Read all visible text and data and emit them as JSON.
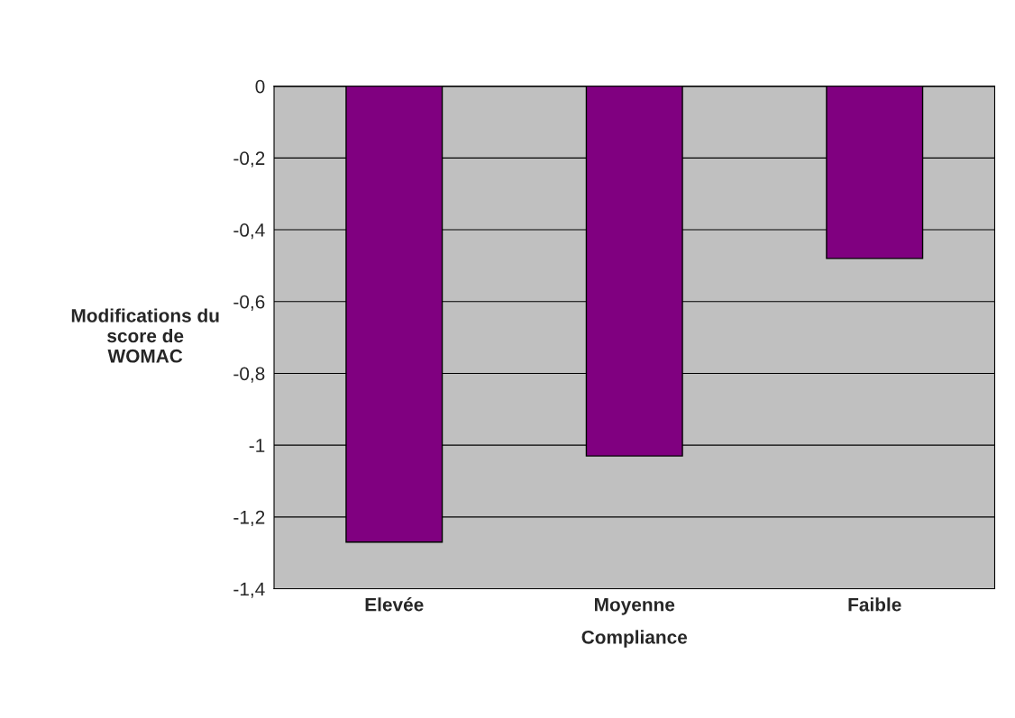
{
  "chart_data": {
    "type": "bar",
    "xlabel": "Compliance",
    "ylabel": "Modifications du\nscore de\nWOMAC",
    "categories": [
      "Elevée",
      "Moyenne",
      "Faible"
    ],
    "values": [
      -1.27,
      -1.03,
      -0.48
    ],
    "color": "#800080",
    "ylim": [
      -1.4,
      0
    ],
    "yticks": [
      {
        "value": 0,
        "label": "0"
      },
      {
        "value": -0.2,
        "label": "-0,2"
      },
      {
        "value": -0.4,
        "label": "-0,4"
      },
      {
        "value": -0.6,
        "label": "-0,6"
      },
      {
        "value": -0.8,
        "label": "-0,8"
      },
      {
        "value": -1,
        "label": "-1"
      },
      {
        "value": -1.2,
        "label": "-1,2"
      },
      {
        "value": -1.4,
        "label": "-1,4"
      }
    ],
    "grid": "y",
    "legend": false
  }
}
